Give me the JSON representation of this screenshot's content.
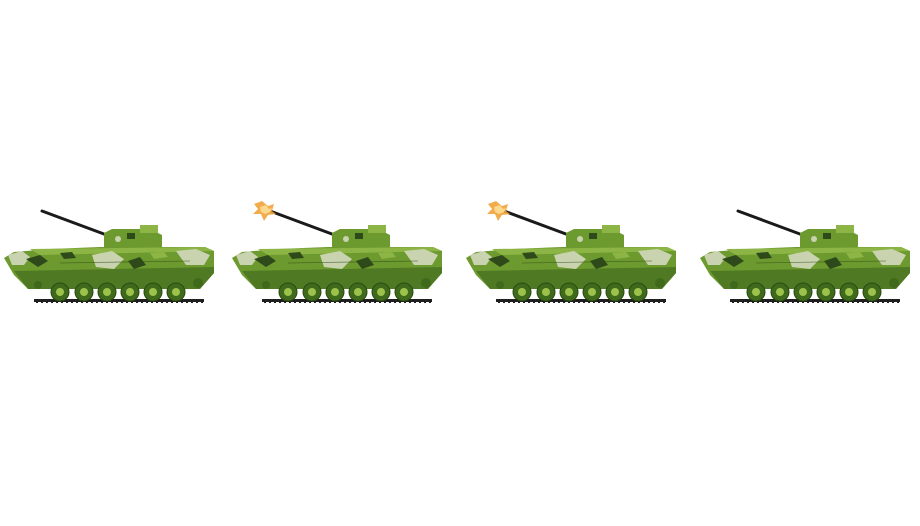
{
  "scene": {
    "background_color": "#ffffff",
    "frames": [
      {
        "muzzle_flash": false
      },
      {
        "muzzle_flash": true
      },
      {
        "muzzle_flash": true
      },
      {
        "muzzle_flash": false
      }
    ]
  },
  "palette": {
    "hull_dark": "#4f7a23",
    "hull_mid": "#6d9a2e",
    "hull_light": "#8cb545",
    "camo_pale": "#c9d3b0",
    "camo_dark": "#2e4a1a",
    "wheel": "#3f6a1c",
    "wheel_hub": "#9cc24c",
    "track": "#1f1f1f",
    "barrel": "#1a1a1a",
    "flash": "#f2a33a"
  }
}
